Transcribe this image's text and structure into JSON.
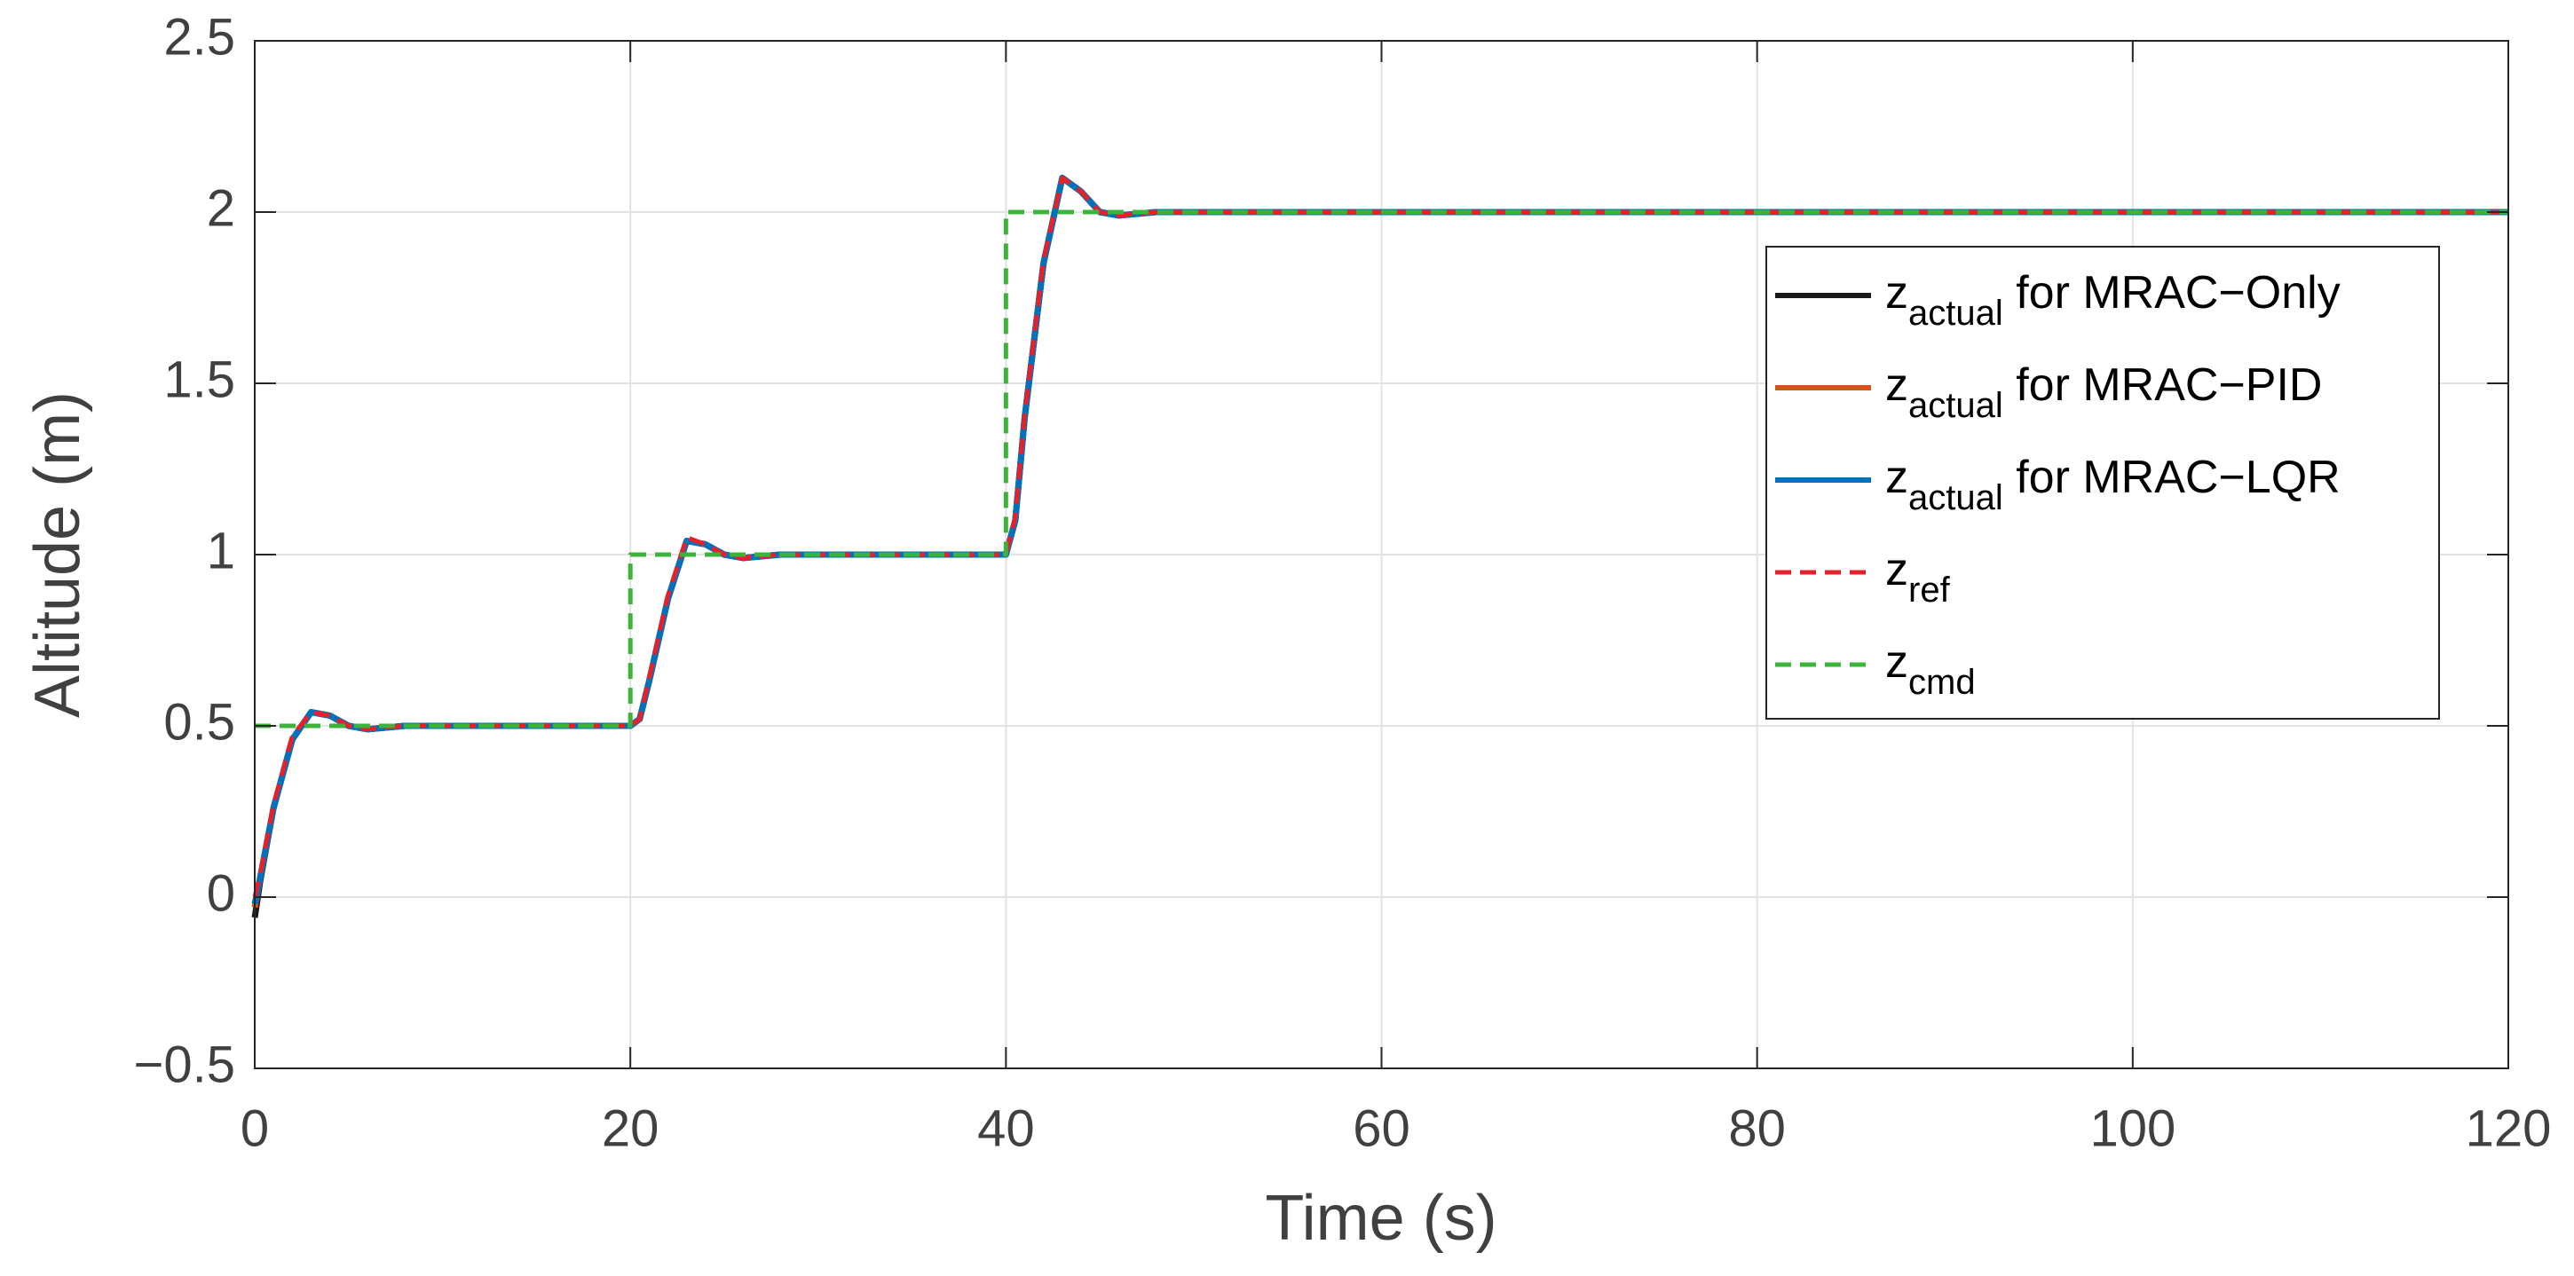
{
  "chart_data": {
    "type": "line",
    "xlabel": "Time (s)",
    "ylabel": "Altitude (m)",
    "xlim": [
      0,
      120
    ],
    "ylim": [
      -0.5,
      2.5
    ],
    "xticks": [
      0,
      20,
      40,
      60,
      80,
      100,
      120
    ],
    "yticks": [
      {
        "value": -0.5,
        "label": "−0.5"
      },
      0,
      0.5,
      1,
      1.5,
      2,
      2.5
    ],
    "grid": true,
    "legend": "upper right",
    "x": [
      0,
      0.3,
      1,
      2,
      3,
      4,
      5,
      6,
      8,
      10,
      20,
      20.5,
      21,
      22,
      23,
      24,
      25,
      26,
      28,
      30,
      40,
      40.5,
      41,
      42,
      43,
      44,
      45,
      46,
      48,
      50,
      60,
      80,
      90,
      100,
      120
    ],
    "series": [
      {
        "name": [
          "z",
          "actual",
          " for MRAC−Only"
        ],
        "color": "#1a1a1a",
        "style": "solid",
        "values": [
          -0.06,
          0.05,
          0.26,
          0.46,
          0.54,
          0.53,
          0.5,
          0.49,
          0.5,
          0.5,
          0.5,
          0.52,
          0.63,
          0.87,
          1.04,
          1.03,
          1.0,
          0.99,
          1.0,
          1.0,
          1.0,
          1.1,
          1.4,
          1.85,
          2.1,
          2.06,
          2.0,
          1.99,
          2.0,
          2.0,
          2.0,
          2.0,
          2.0,
          2.0,
          2.0
        ]
      },
      {
        "name": [
          "z",
          "actual",
          " for MRAC−PID"
        ],
        "color": "#d95319",
        "style": "solid",
        "values": [
          -0.03,
          0.06,
          0.26,
          0.46,
          0.54,
          0.53,
          0.5,
          0.49,
          0.5,
          0.5,
          0.5,
          0.52,
          0.63,
          0.87,
          1.04,
          1.03,
          1.0,
          0.99,
          1.0,
          1.0,
          1.0,
          1.1,
          1.4,
          1.85,
          2.1,
          2.06,
          2.0,
          1.99,
          2.0,
          2.0,
          2.0,
          2.0,
          2.0,
          2.0,
          2.0
        ]
      },
      {
        "name": [
          "z",
          "actual",
          " for MRAC−LQR"
        ],
        "color": "#0072bd",
        "style": "solid",
        "values": [
          -0.02,
          0.06,
          0.26,
          0.46,
          0.54,
          0.53,
          0.5,
          0.49,
          0.5,
          0.5,
          0.5,
          0.52,
          0.63,
          0.87,
          1.04,
          1.03,
          1.0,
          0.99,
          1.0,
          1.0,
          1.0,
          1.1,
          1.4,
          1.85,
          2.1,
          2.06,
          2.0,
          1.99,
          2.0,
          2.0,
          2.0,
          2.0,
          2.0,
          2.0,
          2.0
        ]
      },
      {
        "name": [
          "z",
          "ref",
          ""
        ],
        "color": "#e8202a",
        "style": "dashed",
        "values": [
          0,
          0.07,
          0.27,
          0.47,
          0.54,
          0.53,
          0.5,
          0.49,
          0.5,
          0.5,
          0.5,
          0.52,
          0.64,
          0.88,
          1.05,
          1.03,
          1.0,
          0.99,
          1.0,
          1.0,
          1.0,
          1.11,
          1.41,
          1.86,
          2.1,
          2.06,
          2.0,
          1.99,
          2.0,
          2.0,
          2.0,
          2.0,
          2.0,
          2.0,
          2.0
        ]
      },
      {
        "name": [
          "z",
          "cmd",
          ""
        ],
        "color": "#3cb43c",
        "style": "dashed",
        "x": [
          0,
          20,
          20,
          40,
          40,
          120
        ],
        "values": [
          0.5,
          0.5,
          1,
          1,
          2,
          2
        ]
      }
    ]
  }
}
